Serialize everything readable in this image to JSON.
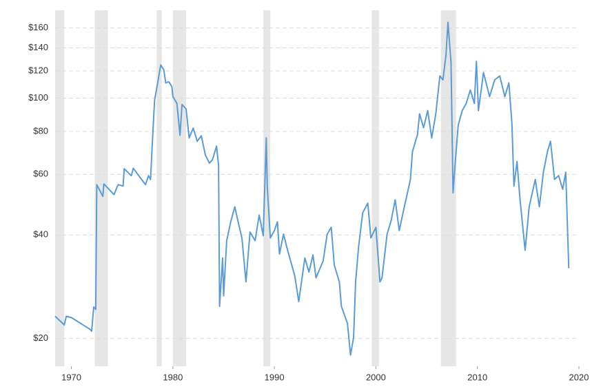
{
  "chart_data": {
    "type": "line",
    "log_scale_y": true,
    "grid": true,
    "xlim": [
      1968.4,
      2020
    ],
    "ylim": [
      16.6,
      180
    ],
    "xticks": [
      1970,
      1980,
      1990,
      2000,
      2010,
      2020
    ],
    "yticks": [
      {
        "value": 20,
        "label": "$20"
      },
      {
        "value": 40,
        "label": "$40"
      },
      {
        "value": 60,
        "label": "$60"
      },
      {
        "value": 80,
        "label": "$80"
      },
      {
        "value": 100,
        "label": "$100"
      },
      {
        "value": 120,
        "label": "$120"
      },
      {
        "value": 140,
        "label": "$140"
      },
      {
        "value": 160,
        "label": "$160"
      }
    ],
    "shaded_ranges": [
      [
        1968.4,
        1969.3
      ],
      [
        1972.3,
        1973.6
      ],
      [
        1978.4,
        1978.9
      ],
      [
        1980.0,
        1981.3
      ],
      [
        1988.9,
        1989.6
      ],
      [
        1999.6,
        2000.3
      ],
      [
        2006.4,
        2007.9
      ]
    ],
    "shade_color": "#e6e6e6",
    "series": [
      {
        "color": "#5b9bd5",
        "x": [
          1968.4,
          1969.3,
          1969.5,
          1970.0,
          1971.8,
          1972.0,
          1972.2,
          1972.4,
          1972.5,
          1973.1,
          1973.2,
          1974.2,
          1974.6,
          1975.1,
          1975.2,
          1975.9,
          1976.1,
          1977.3,
          1977.6,
          1977.8,
          1978.0,
          1978.2,
          1978.5,
          1978.8,
          1979.1,
          1979.3,
          1979.6,
          1979.9,
          1980.0,
          1980.4,
          1980.7,
          1980.9,
          1981.3,
          1981.6,
          1982.0,
          1982.4,
          1982.8,
          1983.2,
          1983.6,
          1983.9,
          1984.3,
          1984.5,
          1984.6,
          1984.9,
          1985.0,
          1985.3,
          1985.7,
          1986.1,
          1986.4,
          1986.8,
          1987.2,
          1987.6,
          1988.1,
          1988.5,
          1988.9,
          1989.2,
          1989.3,
          1989.6,
          1990.0,
          1990.3,
          1990.5,
          1990.9,
          1991.3,
          1992.0,
          1992.4,
          1993.0,
          1993.4,
          1993.8,
          1994.1,
          1994.8,
          1995.2,
          1995.6,
          1995.9,
          1996.4,
          1996.6,
          1997.2,
          1997.5,
          1997.8,
          1998.0,
          1998.3,
          1998.7,
          1999.2,
          1999.5,
          2000.0,
          2000.4,
          2000.6,
          2001.1,
          2001.5,
          2001.9,
          2002.3,
          2002.8,
          2003.4,
          2003.6,
          2004.1,
          2004.3,
          2004.7,
          2005.1,
          2005.5,
          2005.9,
          2006.3,
          2006.6,
          2006.9,
          2007.1,
          2007.4,
          2007.6,
          2007.8,
          2008.1,
          2008.5,
          2008.9,
          2009.3,
          2009.7,
          2009.9,
          2010.1,
          2010.6,
          2011.2,
          2011.7,
          2012.2,
          2012.7,
          2013.1,
          2013.4,
          2013.6,
          2013.9,
          2014.2,
          2014.7,
          2015.1,
          2015.7,
          2016.1,
          2016.5,
          2016.9,
          2017.2,
          2017.6,
          2018.0,
          2018.4,
          2018.7,
          2019.0
        ],
        "values": [
          23.2,
          21.9,
          23.2,
          23.0,
          21.3,
          21.0,
          24.7,
          24.3,
          56.0,
          51.8,
          56.3,
          52.4,
          56.0,
          55.5,
          62.3,
          59.5,
          62.5,
          56.0,
          59.5,
          58.0,
          76.6,
          98.7,
          110.7,
          124.8,
          121,
          110.7,
          111.6,
          108,
          101,
          96.5,
          78,
          95.8,
          93,
          76.6,
          81.8,
          74.9,
          77.7,
          68.3,
          64.7,
          66.2,
          72.5,
          63.8,
          24.8,
          34.3,
          26.6,
          38.5,
          43.7,
          48.3,
          44,
          39.2,
          29.2,
          40.8,
          38.5,
          45.7,
          39.8,
          76.6,
          55,
          39.2,
          41.2,
          43.7,
          35.2,
          40.2,
          36.1,
          30.5,
          25.6,
          34.3,
          31.2,
          35,
          30,
          33.6,
          40.2,
          42.1,
          32.7,
          29.2,
          24.8,
          22.1,
          17.9,
          20.1,
          29.2,
          37.1,
          46.4,
          49.5,
          39.2,
          42.1,
          29.2,
          30,
          40.2,
          44,
          50.6,
          41.2,
          48.3,
          58,
          69.9,
          78.4,
          90,
          82,
          92,
          76.6,
          90,
          116,
          113,
          133,
          166,
          127,
          53,
          63.8,
          83.2,
          92,
          96.5,
          105.6,
          96.5,
          128,
          92,
          118.7,
          101,
          113,
          116,
          101,
          110.7,
          84.4,
          55.5,
          65.4,
          50.6,
          36.1,
          48.3,
          58,
          48.3,
          60.9,
          69.9,
          74.9,
          58,
          59.5,
          54.3,
          60.9,
          32
        ]
      }
    ]
  }
}
